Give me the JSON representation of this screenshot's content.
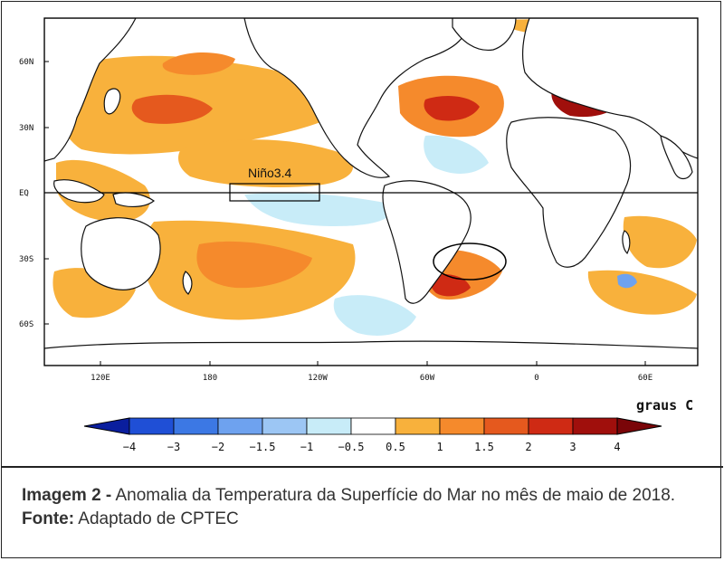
{
  "map": {
    "lat_labels": [
      "60N",
      "30N",
      "EQ",
      "30S",
      "60S"
    ],
    "lon_labels": [
      "120E",
      "180",
      "120W",
      "60W",
      "0",
      "60E"
    ],
    "region_label": "Niño3.4",
    "units_label": "graus C"
  },
  "colorbar": {
    "ticks": [
      "−4",
      "−3",
      "−2",
      "−1.5",
      "−1",
      "−0.5",
      "0.5",
      "1",
      "1.5",
      "2",
      "3",
      "4"
    ],
    "colors": [
      "#0a1e9e",
      "#1f4fd6",
      "#3c78e4",
      "#6ea2ef",
      "#9cc6f4",
      "#c8ecf8",
      "#ffffff",
      "#f8b13c",
      "#f58a2c",
      "#e5591e",
      "#cf2a14",
      "#a00f0c",
      "#7a0508"
    ]
  },
  "caption": {
    "label": "Imagem 2 -",
    "text": " Anomalia da Temperatura da Superfície do Mar no mês de maio de 2018. ",
    "source_label": "Fonte:",
    "source_text": " Adaptado de CPTEC"
  }
}
